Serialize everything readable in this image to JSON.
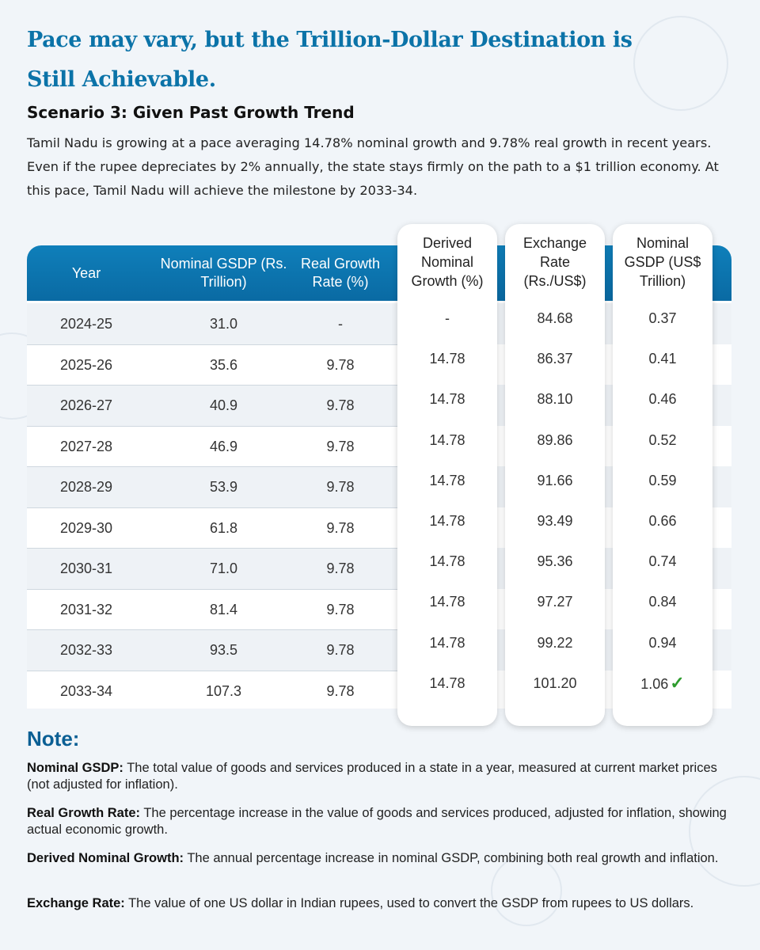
{
  "title": "Pace may vary, but the Trillion-Dollar Destination is Still Achievable.",
  "scenario": "Scenario 3: Given Past Growth Trend",
  "intro": "Tamil Nadu is growing at a pace averaging 14.78% nominal growth and 9.78% real growth in recent years. Even if the rupee depreciates by 2% annually, the state stays firmly on the path to a $1 trillion economy. At this pace, Tamil Nadu will achieve the milestone by 2033-34.",
  "table": {
    "headers": {
      "year": "Year",
      "nominal_gsdp": "Nominal GSDP (Rs. Trillion)",
      "real_growth": "Real Growth Rate (%)",
      "derived_nominal": "Derived Nominal Growth (%)",
      "exchange_rate": "Exchange Rate (Rs./US$)",
      "nominal_usd": "Nominal GSDP (US$ Trillion)"
    },
    "rows": [
      {
        "year": "2024-25",
        "nominal": "31.0",
        "real": "-",
        "derived": "-",
        "fx": "84.68",
        "usd": "0.37"
      },
      {
        "year": "2025-26",
        "nominal": "35.6",
        "real": "9.78",
        "derived": "14.78",
        "fx": "86.37",
        "usd": "0.41"
      },
      {
        "year": "2026-27",
        "nominal": "40.9",
        "real": "9.78",
        "derived": "14.78",
        "fx": "88.10",
        "usd": "0.46"
      },
      {
        "year": "2027-28",
        "nominal": "46.9",
        "real": "9.78",
        "derived": "14.78",
        "fx": "89.86",
        "usd": "0.52"
      },
      {
        "year": "2028-29",
        "nominal": "53.9",
        "real": "9.78",
        "derived": "14.78",
        "fx": "91.66",
        "usd": "0.59"
      },
      {
        "year": "2029-30",
        "nominal": "61.8",
        "real": "9.78",
        "derived": "14.78",
        "fx": "93.49",
        "usd": "0.66"
      },
      {
        "year": "2030-31",
        "nominal": "71.0",
        "real": "9.78",
        "derived": "14.78",
        "fx": "95.36",
        "usd": "0.74"
      },
      {
        "year": "2031-32",
        "nominal": "81.4",
        "real": "9.78",
        "derived": "14.78",
        "fx": "97.27",
        "usd": "0.84"
      },
      {
        "year": "2032-33",
        "nominal": "93.5",
        "real": "9.78",
        "derived": "14.78",
        "fx": "99.22",
        "usd": "0.94"
      },
      {
        "year": "2033-34",
        "nominal": "107.3",
        "real": "9.78",
        "derived": "14.78",
        "fx": "101.20",
        "usd": "1.06"
      }
    ],
    "milestone_icon": "checkmark-icon"
  },
  "note": {
    "title": "Note:",
    "items": [
      {
        "term": "Nominal GSDP:",
        "text": " The total value of goods and services produced in a state in a year, measured at current market prices (not adjusted for inflation)."
      },
      {
        "term": "Real Growth Rate:",
        "text": " The percentage increase in the value of goods and services produced, adjusted for inflation, showing actual economic growth."
      },
      {
        "term": "Derived Nominal Growth:",
        "text": " The annual percentage increase in nominal GSDP, combining both real growth and inflation."
      },
      {
        "term": "Exchange Rate:",
        "text": " The value of one US dollar in Indian rupees, used to convert the GSDP from rupees to US dollars."
      }
    ]
  },
  "colors": {
    "accent": "#0b73a8",
    "header_bg": "#0a6aa3",
    "check": "#2e9c2e"
  }
}
